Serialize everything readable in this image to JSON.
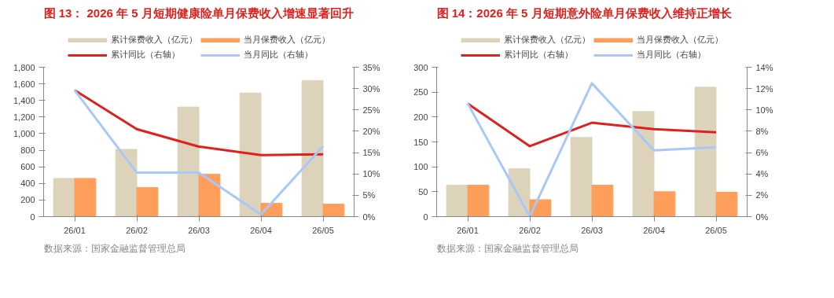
{
  "chart_data": [
    {
      "type": "bar",
      "title": "图 13： 2026 年 5 月短期健康险单月保费收入增速显著回升",
      "categories": [
        "26/01",
        "26/02",
        "26/03",
        "26/04",
        "26/05"
      ],
      "series": [
        {
          "name": "累计保费收入（亿元）",
          "color": "#ddd3bb",
          "values": [
            460,
            810,
            1320,
            1490,
            1640
          ]
        },
        {
          "name": "当月保费收入（亿元）",
          "color": "#ff9e5a",
          "values": [
            460,
            350,
            510,
            160,
            150
          ]
        },
        {
          "name": "累计同比（右轴）",
          "type": "line",
          "axis": "y2",
          "color": "#e0201c",
          "values": [
            29.6,
            20.5,
            16.4,
            14.4,
            14.6
          ]
        },
        {
          "name": "当月同比（右轴）",
          "type": "line",
          "axis": "y2",
          "color": "#a8c8f8",
          "values": [
            29.6,
            10.3,
            10.3,
            0.5,
            16.5
          ]
        }
      ],
      "ylim": [
        0,
        1800
      ],
      "yticks": [
        0,
        200,
        400,
        600,
        800,
        {
          "value": 1000,
          "label": "1,000"
        },
        {
          "value": 1200,
          "label": "1,200"
        },
        {
          "value": 1400,
          "label": "1,400"
        },
        {
          "value": 1600,
          "label": "1,600"
        },
        {
          "value": 1800,
          "label": "1,800"
        }
      ],
      "y2lim": [
        0,
        35
      ],
      "y2ticks": [
        {
          "value": 0,
          "label": "0%"
        },
        {
          "value": 5,
          "label": "5%"
        },
        {
          "value": 10,
          "label": "10%"
        },
        {
          "value": 15,
          "label": "15%"
        },
        {
          "value": 20,
          "label": "20%"
        },
        {
          "value": 25,
          "label": "25%"
        },
        {
          "value": 30,
          "label": "30%"
        },
        {
          "value": 35,
          "label": "35%"
        }
      ],
      "legend": "top",
      "grid": false,
      "annotations": [
        "数据来源：国家金融监督管理总局"
      ]
    },
    {
      "type": "bar",
      "title": "图 14：2026 年 5 月短期意外险单月保费收入维持正增长",
      "categories": [
        "26/01",
        "26/02",
        "26/03",
        "26/04",
        "26/05"
      ],
      "series": [
        {
          "name": "累计保费收入（亿元）",
          "color": "#ddd3bb",
          "values": [
            63,
            96,
            159,
            211,
            260
          ]
        },
        {
          "name": "当月保费收入（亿元）",
          "color": "#ff9e5a",
          "values": [
            63,
            34,
            63,
            50,
            49
          ]
        },
        {
          "name": "累计同比（右轴）",
          "type": "line",
          "axis": "y2",
          "color": "#e0201c",
          "values": [
            10.6,
            6.6,
            8.8,
            8.2,
            7.9
          ]
        },
        {
          "name": "当月同比（右轴）",
          "type": "line",
          "axis": "y2",
          "color": "#a8c8f8",
          "values": [
            10.6,
            0,
            12.5,
            6.2,
            6.5
          ]
        }
      ],
      "ylim": [
        0,
        300
      ],
      "yticks": [
        0,
        50,
        100,
        150,
        200,
        250,
        300
      ],
      "y2lim": [
        0,
        14
      ],
      "y2ticks": [
        {
          "value": 0,
          "label": "0%"
        },
        {
          "value": 2,
          "label": "2%"
        },
        {
          "value": 4,
          "label": "4%"
        },
        {
          "value": 6,
          "label": "6%"
        },
        {
          "value": 8,
          "label": "8%"
        },
        {
          "value": 10,
          "label": "10%"
        },
        {
          "value": 12,
          "label": "12%"
        },
        {
          "value": 14,
          "label": "14%"
        }
      ],
      "legend": "top",
      "grid": false,
      "annotations": [
        "数据来源：国家金融监督管理总局"
      ]
    }
  ]
}
